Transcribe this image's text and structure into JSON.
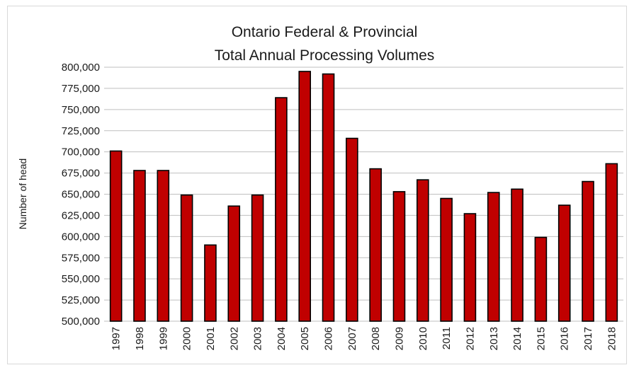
{
  "chart_data": {
    "type": "bar",
    "title": "Ontario Federal & Provincial Total Annual Processing Volumes",
    "title_lines": [
      "Ontario Federal & Provincial",
      "Total Annual Processing Volumes"
    ],
    "xlabel": "",
    "ylabel": "Number of head",
    "ylim": [
      500000,
      800000
    ],
    "yticks": [
      500000,
      525000,
      550000,
      575000,
      600000,
      625000,
      650000,
      675000,
      700000,
      725000,
      750000,
      775000,
      800000
    ],
    "ytick_labels": [
      "500,000",
      "525,000",
      "550,000",
      "575,000",
      "600,000",
      "625,000",
      "650,000",
      "675,000",
      "700,000",
      "725,000",
      "750,000",
      "775,000",
      "800,000"
    ],
    "grid": true,
    "legend": false,
    "bar_color": "#c00000",
    "categories": [
      "1997",
      "1998",
      "1999",
      "2000",
      "2001",
      "2002",
      "2003",
      "2004",
      "2005",
      "2006",
      "2007",
      "2008",
      "2009",
      "2010",
      "2011",
      "2012",
      "2013",
      "2014",
      "2015",
      "2016",
      "2017",
      "2018"
    ],
    "values": [
      701000,
      678000,
      678000,
      649000,
      590000,
      636000,
      649000,
      764000,
      795000,
      792000,
      716000,
      680000,
      653000,
      667000,
      645000,
      627000,
      652000,
      656000,
      599000,
      637000,
      665000,
      686000
    ]
  }
}
